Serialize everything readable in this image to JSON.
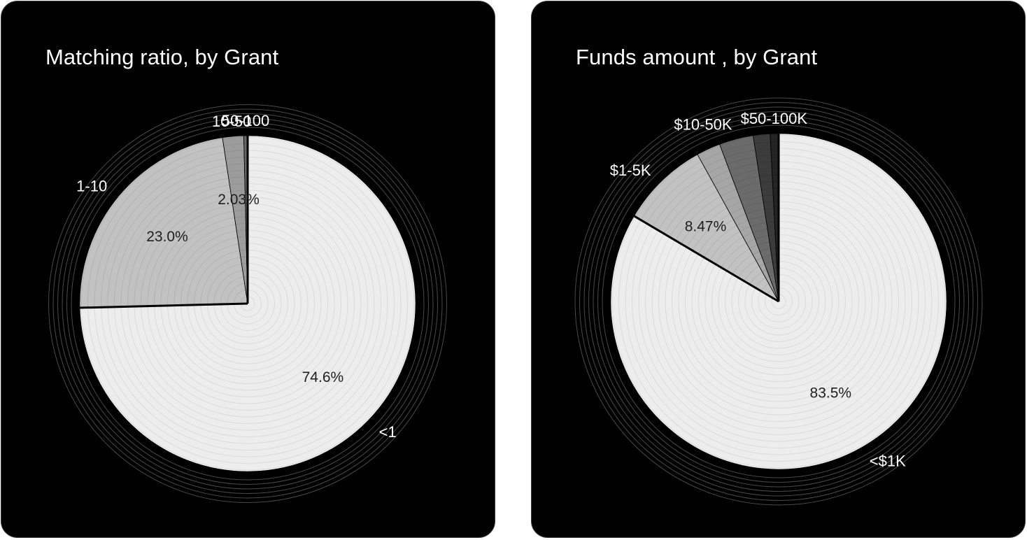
{
  "chart_data": [
    {
      "type": "pie",
      "title": "Matching ratio, by Grant",
      "start_angle_deg": 0,
      "direction": "clockwise",
      "slices": [
        {
          "label": "<1",
          "value": 74.6,
          "value_label": "74.6%",
          "color": "#ededed"
        },
        {
          "label": "1-10",
          "value": 23.0,
          "value_label": "23.0%",
          "color": "#c2c2c2"
        },
        {
          "label": "10-50",
          "value": 2.03,
          "value_label": "2.03%",
          "color": "#9c9c9c"
        },
        {
          "label": "50-100",
          "value": 0.37,
          "value_label": "",
          "color": "#676767"
        },
        {
          "label": "",
          "value": 0.0,
          "value_label": "",
          "color": "#333333"
        }
      ]
    },
    {
      "type": "pie",
      "title": "Funds amount , by Grant",
      "start_angle_deg": 0,
      "direction": "clockwise",
      "slices": [
        {
          "label": "<$1K",
          "value": 83.5,
          "value_label": "83.5%",
          "color": "#ededed"
        },
        {
          "label": "$1-5K",
          "value": 8.47,
          "value_label": "8.47%",
          "color": "#c2c2c2"
        },
        {
          "label": "",
          "value": 2.31,
          "value_label": "",
          "color": "#a6a6a6"
        },
        {
          "label": "$10-50K",
          "value": 3.29,
          "value_label": "",
          "color": "#6b6b6b"
        },
        {
          "label": "",
          "value": 1.62,
          "value_label": "",
          "color": "#3c3c3c"
        },
        {
          "label": "$50-100K",
          "value": 0.81,
          "value_label": "",
          "color": "#242424"
        }
      ]
    }
  ]
}
